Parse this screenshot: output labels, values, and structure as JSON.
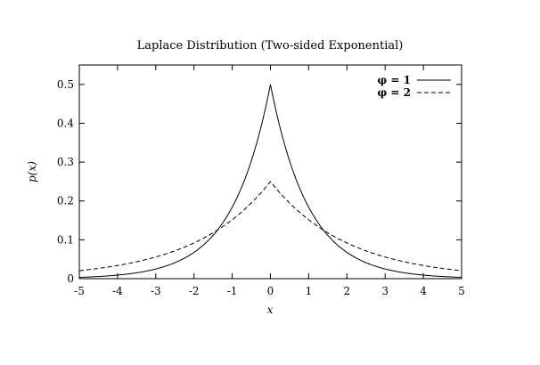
{
  "chart_data": {
    "type": "line",
    "title": "Laplace Distribution (Two-sided Exponential)",
    "xlabel": "x",
    "ylabel": "p(x)",
    "xlim": [
      -5,
      5
    ],
    "ylim": [
      0,
      0.55
    ],
    "x_ticks": [
      -5,
      -4,
      -3,
      -2,
      -1,
      0,
      1,
      2,
      3,
      4,
      5
    ],
    "y_ticks": [
      0,
      0.1,
      0.2,
      0.3,
      0.4,
      0.5
    ],
    "x_tick_labels": [
      "-5",
      "-4",
      "-3",
      "-2",
      "-1",
      "0",
      "1",
      "2",
      "3",
      "4",
      "5"
    ],
    "y_tick_labels": [
      "0",
      "0.1",
      "0.2",
      "0.3",
      "0.4",
      "0.5"
    ],
    "legend_position": "top-right",
    "grid": false,
    "x": [
      -5,
      -4.5,
      -4,
      -3.5,
      -3,
      -2.5,
      -2,
      -1.5,
      -1,
      -0.75,
      -0.5,
      -0.25,
      0,
      0.25,
      0.5,
      0.75,
      1,
      1.5,
      2,
      2.5,
      3,
      3.5,
      4,
      4.5,
      5
    ],
    "series": [
      {
        "name": "φ = 1",
        "style": "solid",
        "color": "#000000",
        "values": [
          0.0034,
          0.0056,
          0.0092,
          0.0151,
          0.0249,
          0.041,
          0.0677,
          0.1116,
          0.1839,
          0.2362,
          0.3033,
          0.3894,
          0.5,
          0.3894,
          0.3033,
          0.2362,
          0.1839,
          0.1116,
          0.0677,
          0.041,
          0.0249,
          0.0151,
          0.0092,
          0.0056,
          0.0034
        ]
      },
      {
        "name": "φ = 2",
        "style": "dashed",
        "color": "#000000",
        "values": [
          0.0205,
          0.0263,
          0.0338,
          0.0434,
          0.0558,
          0.0716,
          0.092,
          0.1181,
          0.1516,
          0.1718,
          0.1947,
          0.2206,
          0.25,
          0.2206,
          0.1947,
          0.1718,
          0.1516,
          0.1181,
          0.092,
          0.0716,
          0.0558,
          0.0434,
          0.0338,
          0.0263,
          0.0205
        ]
      }
    ]
  }
}
